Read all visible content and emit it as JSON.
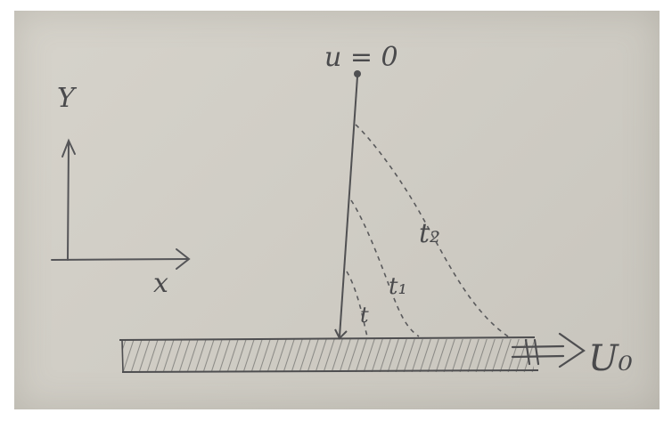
{
  "axes": {
    "y_label": "Y",
    "x_label": "x"
  },
  "labels": {
    "top": "u = 0",
    "t_small": "t",
    "t1": "t₁",
    "t2": "t₂",
    "plate_velocity": "U₀"
  },
  "colors": {
    "ink": "#4a4a4c",
    "paper": "#d2cfc7"
  }
}
